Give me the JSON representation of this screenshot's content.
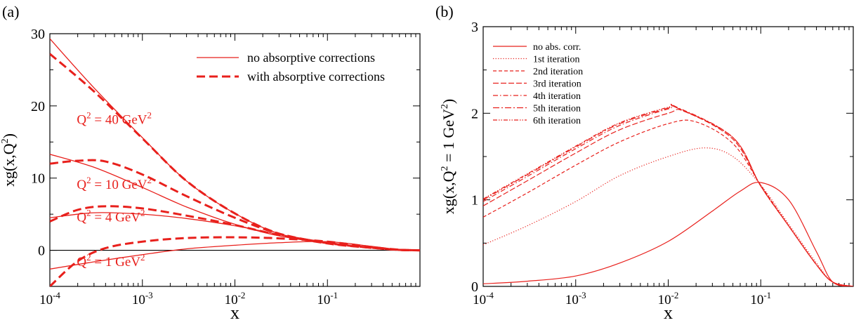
{
  "colors": {
    "curve": "#e8201c",
    "frame": "#000000"
  },
  "chart_data": [
    {
      "type": "line",
      "panel_label": "(a)",
      "xlabel": "x",
      "ylabel": "xg(x,Q²)",
      "xscale": "log",
      "xlim": [
        0.0001,
        1
      ],
      "ylim": [
        -5,
        30
      ],
      "xticks": [
        {
          "value": 0.0001,
          "base": "10",
          "exp": "-4"
        },
        {
          "value": 0.001,
          "base": "10",
          "exp": "-3"
        },
        {
          "value": 0.01,
          "base": "10",
          "exp": "-2"
        },
        {
          "value": 0.1,
          "base": "10",
          "exp": "-1"
        }
      ],
      "yticks": [
        {
          "value": 0,
          "label": "0"
        },
        {
          "value": 10,
          "label": "10"
        },
        {
          "value": 20,
          "label": "20"
        },
        {
          "value": 30,
          "label": "30"
        }
      ],
      "legend_position": "top-right",
      "legend": [
        {
          "label": "no absorptive corrections",
          "style": "solid"
        },
        {
          "label": "with absorptive corrections",
          "style": "dashed"
        }
      ],
      "annotations": [
        {
          "text": "Q² = 40 GeV²",
          "x": 0.00012,
          "y": 17.5
        },
        {
          "text": "Q² = 10 GeV²",
          "x": 0.00012,
          "y": 8.5
        },
        {
          "text": "Q² = 4 GeV²",
          "x": 0.00012,
          "y": 4.0
        },
        {
          "text": "Q² = 1 GeV²",
          "x": 0.00012,
          "y": -2.2
        }
      ],
      "series": [
        {
          "style": "solid",
          "x": [
            0.0001,
            0.0003,
            0.001,
            0.003,
            0.01,
            0.03,
            0.1,
            0.3,
            0.6,
            1
          ],
          "y": [
            29.3,
            22.5,
            15.6,
            9.6,
            5.1,
            2.3,
            1.0,
            0.4,
            0.08,
            0
          ]
        },
        {
          "style": "dashed",
          "x": [
            0.0001,
            0.0003,
            0.001,
            0.003,
            0.01,
            0.03,
            0.1,
            0.3,
            0.6,
            1
          ],
          "y": [
            27.2,
            22.0,
            15.5,
            9.6,
            5.1,
            2.3,
            0.95,
            0.35,
            0.06,
            0
          ]
        },
        {
          "style": "solid",
          "x": [
            0.0001,
            0.0003,
            0.001,
            0.003,
            0.01,
            0.03,
            0.1,
            0.3,
            0.6,
            1
          ],
          "y": [
            13.3,
            11.5,
            8.7,
            6.0,
            3.6,
            2.0,
            1.0,
            0.4,
            0.08,
            0
          ]
        },
        {
          "style": "dashed",
          "x": [
            0.0001,
            0.0002,
            0.0004,
            0.001,
            0.003,
            0.01,
            0.03,
            0.1,
            0.3,
            0.6,
            1
          ],
          "y": [
            12.0,
            12.4,
            12.3,
            10.5,
            7.5,
            4.5,
            2.3,
            1.0,
            0.35,
            0.06,
            0
          ]
        },
        {
          "style": "solid",
          "x": [
            0.0001,
            0.0003,
            0.001,
            0.003,
            0.01,
            0.03,
            0.1,
            0.3,
            0.6,
            1
          ],
          "y": [
            4.5,
            5.2,
            5.0,
            4.4,
            3.4,
            2.2,
            1.1,
            0.4,
            0.08,
            0
          ]
        },
        {
          "style": "dashed",
          "x": [
            0.0001,
            0.0002,
            0.0004,
            0.001,
            0.003,
            0.01,
            0.03,
            0.1,
            0.3,
            0.6,
            1
          ],
          "y": [
            4.0,
            5.6,
            6.1,
            5.8,
            4.8,
            3.5,
            2.1,
            1.0,
            0.35,
            0.06,
            0
          ]
        },
        {
          "style": "solid",
          "x": [
            0.0001,
            0.0003,
            0.001,
            0.003,
            0.01,
            0.03,
            0.1,
            0.3,
            0.6,
            1
          ],
          "y": [
            -2.6,
            -1.6,
            -0.6,
            0.2,
            0.7,
            1.05,
            1.2,
            0.55,
            0.1,
            0
          ]
        },
        {
          "style": "dashed",
          "x": [
            0.0001,
            0.0002,
            0.0004,
            0.001,
            0.003,
            0.01,
            0.03,
            0.1,
            0.3,
            0.6,
            1
          ],
          "y": [
            -5.0,
            -1.5,
            0.3,
            1.2,
            1.7,
            1.8,
            1.65,
            1.2,
            0.45,
            0.08,
            0
          ]
        }
      ]
    },
    {
      "type": "line",
      "panel_label": "(b)",
      "xlabel": "x",
      "ylabel": "xg(x,Q² = 1 GeV²)",
      "xscale": "log",
      "xlim": [
        0.0001,
        1
      ],
      "ylim": [
        0,
        3
      ],
      "xticks": [
        {
          "value": 0.0001,
          "base": "10",
          "exp": "-4"
        },
        {
          "value": 0.001,
          "base": "10",
          "exp": "-3"
        },
        {
          "value": 0.01,
          "base": "10",
          "exp": "-2"
        },
        {
          "value": 0.1,
          "base": "10",
          "exp": "-1"
        }
      ],
      "yticks": [
        {
          "value": 0,
          "label": "0"
        },
        {
          "value": 1,
          "label": "1"
        },
        {
          "value": 2,
          "label": "2"
        },
        {
          "value": 3,
          "label": "3"
        }
      ],
      "legend_position": "top-left",
      "series": [
        {
          "name": "no abs. corr.",
          "dash": "",
          "x": [
            0.0001,
            0.0003,
            0.001,
            0.003,
            0.01,
            0.03,
            0.06,
            0.1,
            0.2,
            0.4,
            0.6,
            1
          ],
          "y": [
            0.03,
            0.06,
            0.12,
            0.27,
            0.52,
            0.87,
            1.1,
            1.2,
            1.0,
            0.4,
            0.05,
            0
          ]
        },
        {
          "name": "1st iteration",
          "dash": "1.2,2.4",
          "x": [
            0.0001,
            0.0003,
            0.001,
            0.003,
            0.01,
            0.025,
            0.05,
            0.1,
            0.2,
            0.4,
            0.6,
            1
          ],
          "y": [
            0.48,
            0.7,
            0.98,
            1.28,
            1.5,
            1.6,
            1.5,
            1.17,
            0.72,
            0.27,
            0.05,
            0
          ]
        },
        {
          "name": "2nd iteration",
          "dash": "5,3",
          "x": [
            0.0001,
            0.0003,
            0.001,
            0.003,
            0.01,
            0.02,
            0.05,
            0.1,
            0.2,
            0.4,
            0.6,
            1
          ],
          "y": [
            0.8,
            1.08,
            1.4,
            1.67,
            1.88,
            1.9,
            1.65,
            1.17,
            0.7,
            0.25,
            0.05,
            0
          ]
        },
        {
          "name": "3rd iteration",
          "dash": "8,3",
          "x": [
            0.0001,
            0.0003,
            0.001,
            0.003,
            0.01,
            0.015,
            0.05,
            0.1,
            0.2,
            0.4,
            0.6,
            1
          ],
          "y": [
            0.93,
            1.22,
            1.54,
            1.81,
            2.0,
            2.02,
            1.7,
            1.16,
            0.7,
            0.25,
            0.05,
            0
          ]
        },
        {
          "name": "4th iteration",
          "dash": "7,3,1.5,3",
          "x": [
            0.0001,
            0.0003,
            0.001,
            0.003,
            0.01,
            0.013,
            0.05,
            0.1,
            0.2,
            0.4,
            0.6,
            1
          ],
          "y": [
            0.98,
            1.27,
            1.59,
            1.86,
            2.05,
            2.06,
            1.72,
            1.16,
            0.7,
            0.25,
            0.05,
            0
          ]
        },
        {
          "name": "5th iteration",
          "dash": "9,3,2,3",
          "x": [
            0.0001,
            0.0003,
            0.001,
            0.003,
            0.01,
            0.012,
            0.05,
            0.1,
            0.2,
            0.4,
            0.6,
            1
          ],
          "y": [
            1.0,
            1.29,
            1.61,
            1.88,
            2.06,
            2.07,
            1.72,
            1.16,
            0.7,
            0.25,
            0.05,
            0
          ]
        },
        {
          "name": "6th iteration",
          "dash": "6,2,1.5,2,1.5,2",
          "x": [
            0.0001,
            0.0003,
            0.001,
            0.003,
            0.01,
            0.012,
            0.05,
            0.1,
            0.2,
            0.4,
            0.6,
            1
          ],
          "y": [
            1.01,
            1.3,
            1.62,
            1.89,
            2.07,
            2.07,
            1.72,
            1.16,
            0.7,
            0.25,
            0.05,
            0
          ]
        }
      ]
    }
  ]
}
